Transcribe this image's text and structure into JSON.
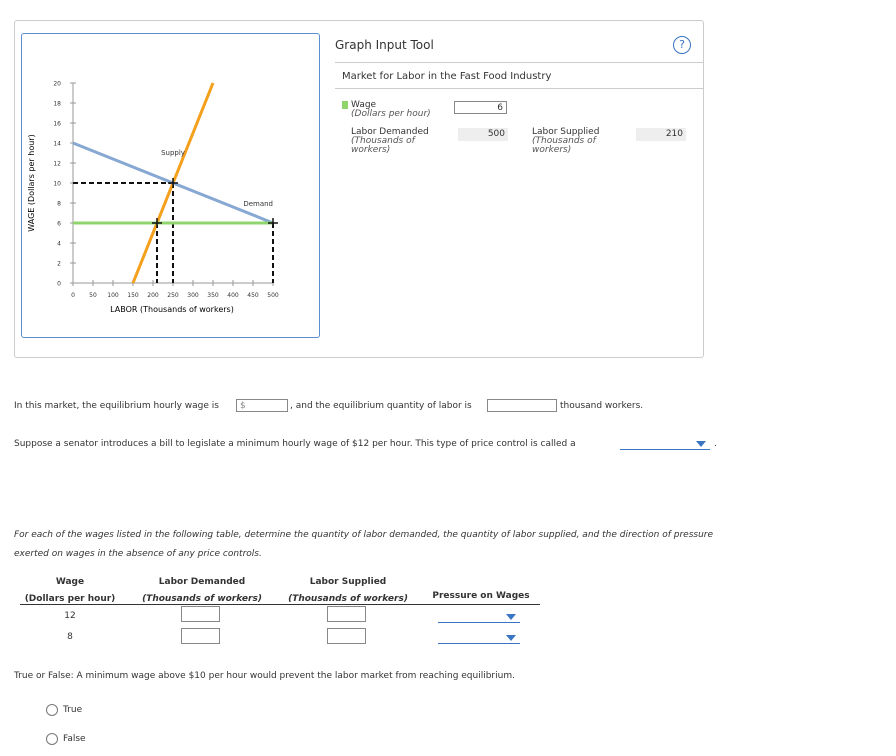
{
  "graph_tool": {
    "title": "Graph Input Tool",
    "help": "?",
    "subtitle": "Market for Labor in the Fast Food Industry",
    "wage_label": "Wage",
    "wage_unit": "(Dollars per hour)",
    "wage_value": 6,
    "demanded_label": "Labor Demanded",
    "demanded_unit": "(Thousands of workers)",
    "demanded_value": 500,
    "supplied_label": "Labor Supplied",
    "supplied_unit": "(Thousands of workers)",
    "supplied_value": 210
  },
  "chart_data": {
    "type": "line",
    "ylabel": "WAGE (Dollars per hour)",
    "xlabel": "LABOR (Thousands of workers)",
    "xlim": [
      0,
      500
    ],
    "ylim": [
      0,
      20
    ],
    "xticks": [
      0,
      50,
      100,
      150,
      200,
      250,
      300,
      350,
      400,
      450,
      500
    ],
    "yticks": [
      0,
      2,
      4,
      6,
      8,
      10,
      12,
      14,
      16,
      18,
      20
    ],
    "series": [
      {
        "name": "Supply",
        "color": "#f5a01c",
        "x": [
          150,
          350
        ],
        "values": [
          0,
          20
        ]
      },
      {
        "name": "Demand",
        "color": "#86a8d3",
        "x": [
          0,
          500
        ],
        "values": [
          14,
          6
        ]
      },
      {
        "color": "#90d46e",
        "x": [
          0,
          500
        ],
        "values": [
          6,
          6
        ]
      }
    ],
    "guides": [
      {
        "x": [
          0,
          250
        ],
        "values": [
          10,
          10
        ]
      },
      {
        "x": [
          250,
          250
        ],
        "values": [
          10,
          0
        ]
      },
      {
        "x": [
          210,
          210
        ],
        "values": [
          6,
          0
        ]
      },
      {
        "x": [
          500,
          500
        ],
        "values": [
          6,
          0
        ]
      }
    ],
    "markers": [
      {
        "x": 250,
        "y": 10
      },
      {
        "x": 210,
        "y": 6
      },
      {
        "x": 500,
        "y": 6
      }
    ]
  },
  "question1": {
    "before": "In this market, the equilibrium hourly wage is",
    "prefix": "$",
    "middle": ", and the equilibrium quantity of labor is",
    "after": "thousand workers."
  },
  "question2": {
    "text": "Suppose a senator introduces a bill to legislate a minimum hourly wage of $12 per hour. This type of price control is called a",
    "after": "."
  },
  "question3": {
    "text": "For each of the wages listed in the following table, determine the quantity of labor demanded, the quantity of labor supplied, and the direction of pressure exerted on wages in the absence of any price controls."
  },
  "table": {
    "headers": [
      [
        "Wage",
        "(Dollars per hour)"
      ],
      [
        "Labor Demanded",
        "(Thousands of workers)"
      ],
      [
        "Labor Supplied",
        "(Thousands of workers)"
      ],
      [
        "Pressure on Wages"
      ]
    ],
    "rows": [
      12,
      8
    ]
  },
  "question4": {
    "text": "True or False: A minimum wage above $10 per hour would prevent the labor market from reaching equilibrium.",
    "options": [
      "True",
      "False"
    ]
  }
}
